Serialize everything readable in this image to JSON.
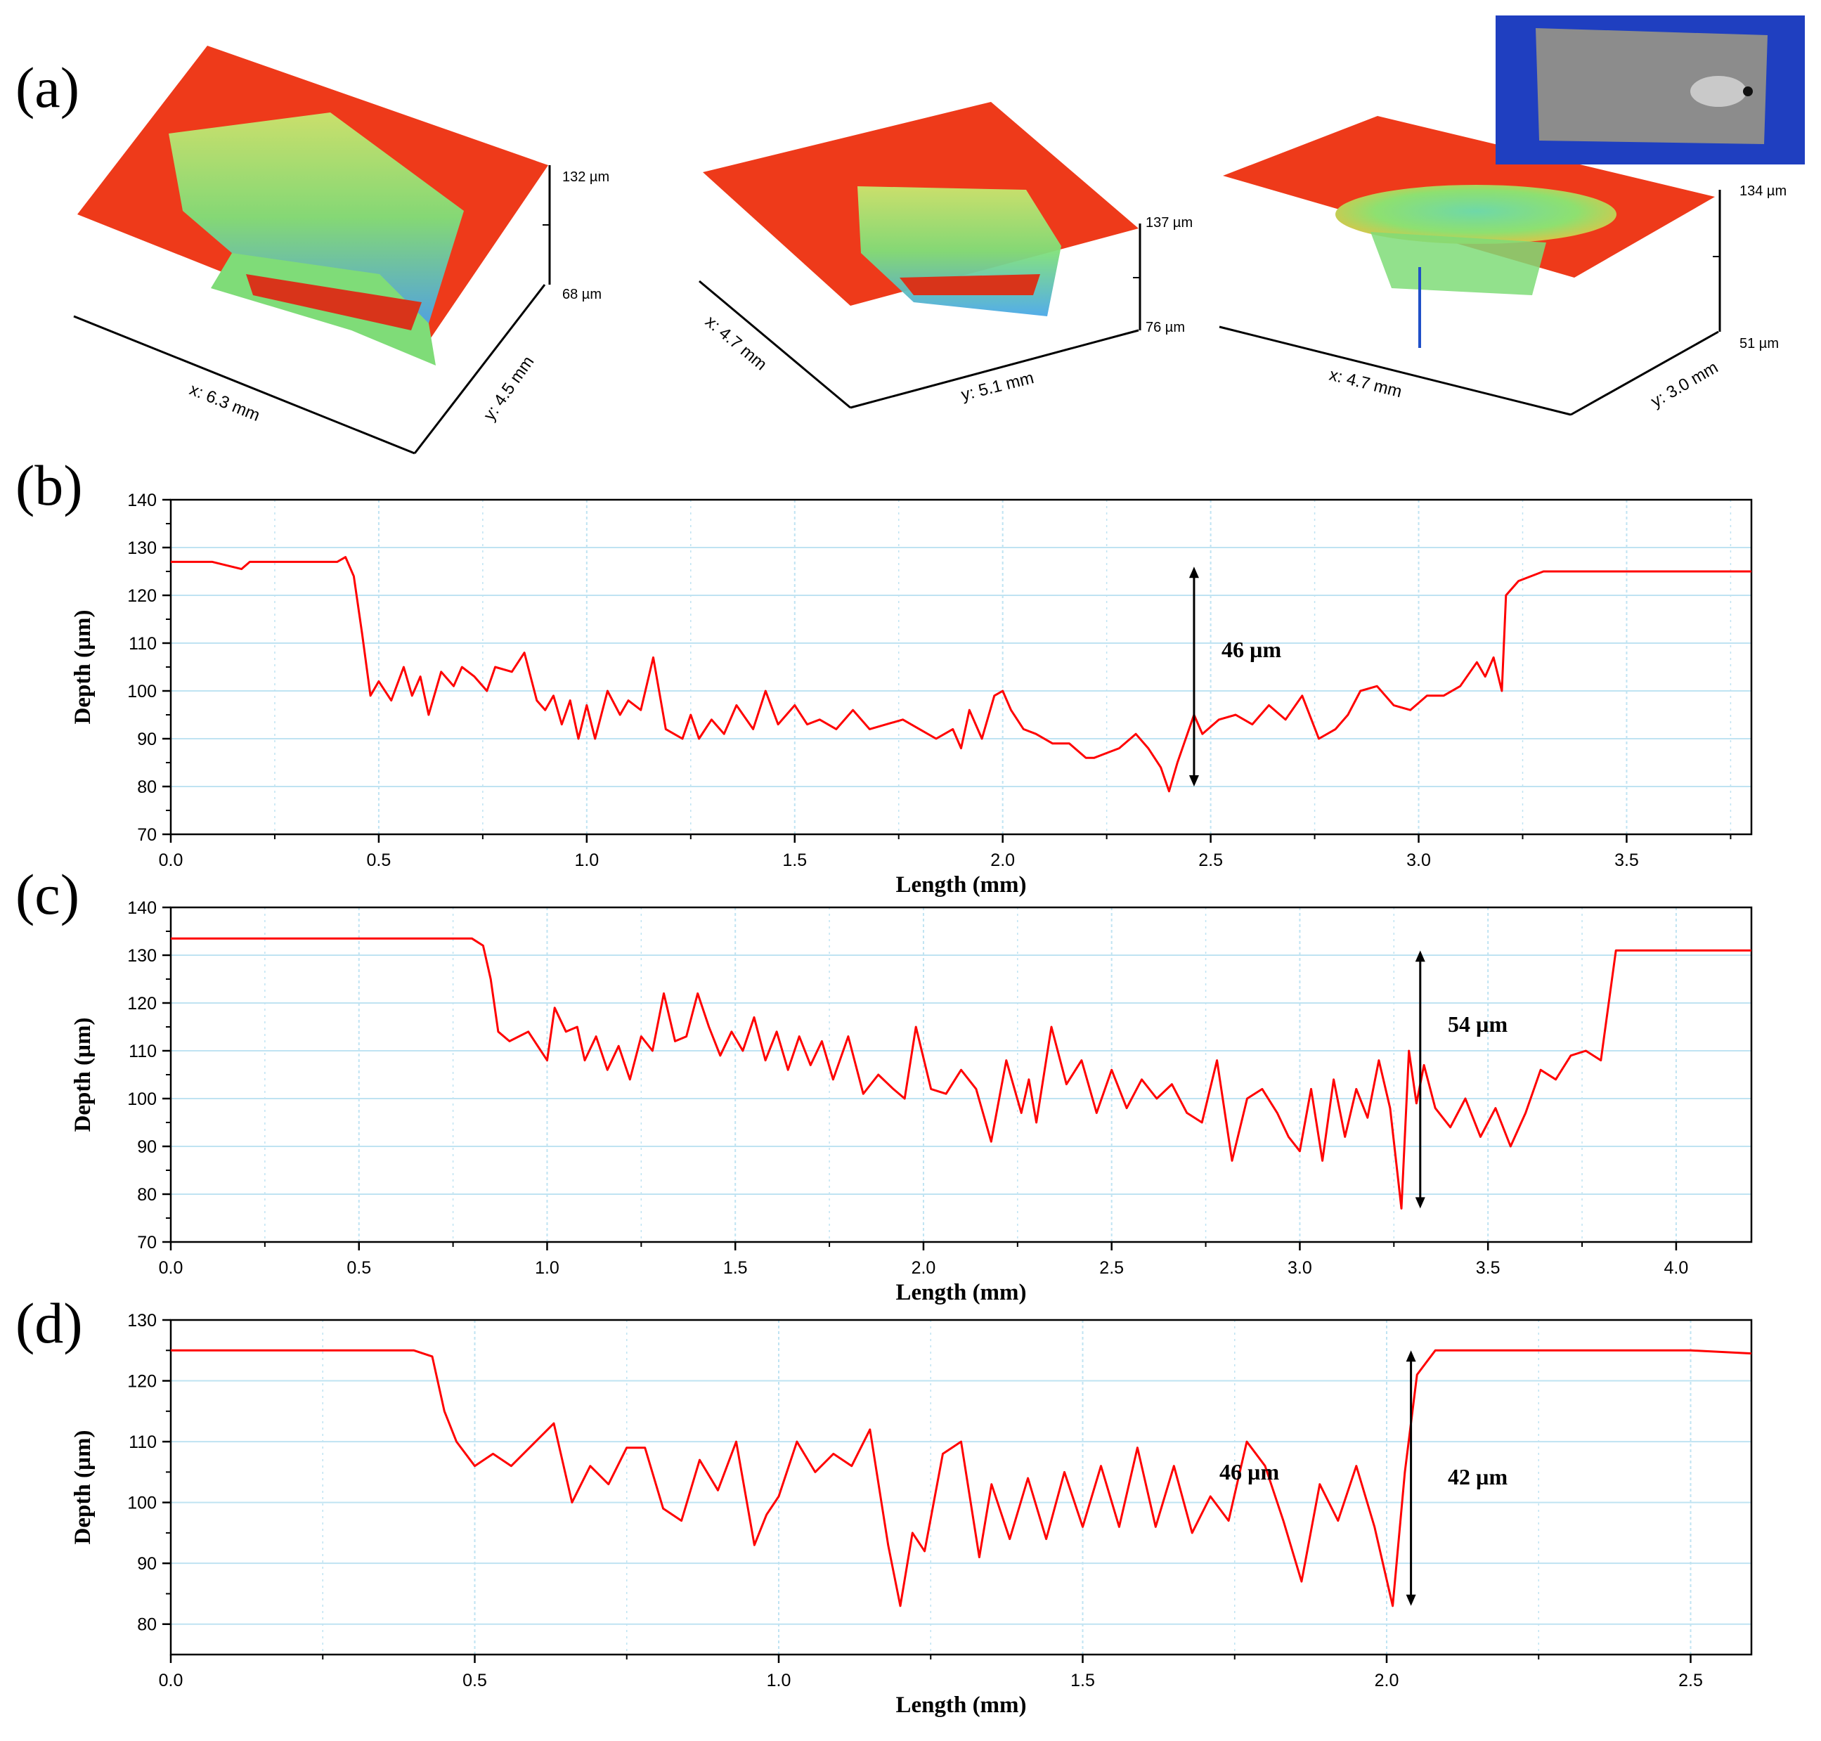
{
  "panel_labels": {
    "a": "(a)",
    "b": "(b)",
    "c": "(c)",
    "d": "(d)"
  },
  "surfaces": [
    {
      "x_label": "x: 6.3 mm",
      "y_label": "y: 4.5 mm",
      "z_max": "132 µm",
      "z_min": "68 µm"
    },
    {
      "x_label": "x: 4.7 mm",
      "y_label": "y: 5.1 mm",
      "z_max": "137 µm",
      "z_min": "76 µm"
    },
    {
      "x_label": "x: 4.7 mm",
      "y_label": "y: 3.0 mm",
      "z_max": "134 µm",
      "z_min": "51 µm"
    }
  ],
  "colors": {
    "trace": "#ff0000",
    "grid": "#bfe3f2",
    "surface_top": "#ee3a1a",
    "pit": "#7fe07a",
    "pit_deep": "#4aa8e8"
  },
  "chart_data": [
    {
      "type": "line",
      "panel": "(b)",
      "xlabel": "Length (mm)",
      "ylabel": "Depth (µm)",
      "xlim": [
        0,
        3.8
      ],
      "ylim": [
        70,
        140
      ],
      "xticks": [
        "0.0",
        "0.5",
        "1.0",
        "1.5",
        "2.0",
        "2.5",
        "3.0",
        "3.5"
      ],
      "yticks": [
        "70",
        "80",
        "90",
        "100",
        "110",
        "120",
        "130",
        "140"
      ],
      "annotations": [
        {
          "text": "46 µm",
          "arrow_x": 2.46,
          "arrow_from": 80,
          "arrow_to": 126
        }
      ],
      "x": [
        0.0,
        0.1,
        0.17,
        0.19,
        0.3,
        0.4,
        0.42,
        0.44,
        0.46,
        0.48,
        0.5,
        0.53,
        0.56,
        0.58,
        0.6,
        0.62,
        0.65,
        0.68,
        0.7,
        0.73,
        0.76,
        0.78,
        0.82,
        0.85,
        0.88,
        0.9,
        0.92,
        0.94,
        0.96,
        0.98,
        1.0,
        1.02,
        1.05,
        1.08,
        1.1,
        1.13,
        1.16,
        1.19,
        1.21,
        1.23,
        1.25,
        1.27,
        1.3,
        1.33,
        1.36,
        1.4,
        1.43,
        1.46,
        1.5,
        1.53,
        1.56,
        1.6,
        1.64,
        1.68,
        1.72,
        1.76,
        1.8,
        1.84,
        1.88,
        1.9,
        1.92,
        1.95,
        1.98,
        2.0,
        2.02,
        2.05,
        2.08,
        2.12,
        2.16,
        2.2,
        2.22,
        2.25,
        2.28,
        2.32,
        2.35,
        2.38,
        2.4,
        2.42,
        2.44,
        2.46,
        2.48,
        2.52,
        2.56,
        2.6,
        2.64,
        2.68,
        2.72,
        2.76,
        2.8,
        2.83,
        2.86,
        2.9,
        2.94,
        2.98,
        3.02,
        3.06,
        3.1,
        3.14,
        3.16,
        3.18,
        3.2,
        3.21,
        3.24,
        3.3,
        3.4,
        3.5,
        3.6,
        3.7,
        3.8
      ],
      "y": [
        127,
        127,
        125.5,
        127,
        127,
        127,
        128,
        124,
        112,
        99,
        102,
        98,
        105,
        99,
        103,
        95,
        104,
        101,
        105,
        103,
        100,
        105,
        104,
        108,
        98,
        96,
        99,
        93,
        98,
        90,
        97,
        90,
        100,
        95,
        98,
        96,
        107,
        92,
        91,
        90,
        95,
        90,
        94,
        91,
        97,
        92,
        100,
        93,
        97,
        93,
        94,
        92,
        96,
        92,
        93,
        94,
        92,
        90,
        92,
        88,
        96,
        90,
        99,
        100,
        96,
        92,
        91,
        89,
        89,
        86,
        86,
        87,
        88,
        91,
        88,
        84,
        79,
        85,
        90,
        95,
        91,
        94,
        95,
        93,
        97,
        94,
        99,
        90,
        92,
        95,
        100,
        101,
        97,
        96,
        99,
        99,
        101,
        106,
        103,
        107,
        100,
        120,
        123,
        125,
        125,
        125,
        125,
        125,
        125
      ],
      "title": "",
      "grid": true
    },
    {
      "type": "line",
      "panel": "(c)",
      "xlabel": "Length (mm)",
      "ylabel": "Depth (µm)",
      "xlim": [
        0,
        4.2
      ],
      "ylim": [
        70,
        140
      ],
      "xticks": [
        "0.0",
        "0.5",
        "1.0",
        "1.5",
        "2.0",
        "2.5",
        "3.0",
        "3.5",
        "4.0"
      ],
      "yticks": [
        "70",
        "80",
        "90",
        "100",
        "110",
        "120",
        "130",
        "140"
      ],
      "annotations": [
        {
          "text": "54 µm",
          "arrow_x": 3.32,
          "arrow_from": 77,
          "arrow_to": 131
        }
      ],
      "x": [
        0.0,
        0.2,
        0.4,
        0.6,
        0.8,
        0.83,
        0.85,
        0.87,
        0.9,
        0.95,
        1.0,
        1.02,
        1.05,
        1.08,
        1.1,
        1.13,
        1.16,
        1.19,
        1.22,
        1.25,
        1.28,
        1.31,
        1.34,
        1.37,
        1.4,
        1.43,
        1.46,
        1.49,
        1.52,
        1.55,
        1.58,
        1.61,
        1.64,
        1.67,
        1.7,
        1.73,
        1.76,
        1.8,
        1.84,
        1.88,
        1.92,
        1.95,
        1.98,
        2.02,
        2.06,
        2.1,
        2.14,
        2.18,
        2.22,
        2.26,
        2.28,
        2.3,
        2.34,
        2.38,
        2.42,
        2.46,
        2.5,
        2.54,
        2.58,
        2.62,
        2.66,
        2.7,
        2.74,
        2.78,
        2.82,
        2.86,
        2.9,
        2.94,
        2.97,
        3.0,
        3.03,
        3.06,
        3.09,
        3.12,
        3.15,
        3.18,
        3.21,
        3.24,
        3.27,
        3.29,
        3.31,
        3.33,
        3.36,
        3.4,
        3.44,
        3.48,
        3.52,
        3.56,
        3.6,
        3.64,
        3.68,
        3.72,
        3.76,
        3.8,
        3.84,
        3.86,
        3.88,
        3.9,
        4.0,
        4.1,
        4.2
      ],
      "y": [
        133.5,
        133.5,
        133.5,
        133.5,
        133.5,
        132,
        125,
        114,
        112,
        114,
        108,
        119,
        114,
        115,
        108,
        113,
        106,
        111,
        104,
        113,
        110,
        122,
        112,
        113,
        122,
        115,
        109,
        114,
        110,
        117,
        108,
        114,
        106,
        113,
        107,
        112,
        104,
        113,
        101,
        105,
        102,
        100,
        115,
        102,
        101,
        106,
        102,
        91,
        108,
        97,
        104,
        95,
        115,
        103,
        108,
        97,
        106,
        98,
        104,
        100,
        103,
        97,
        95,
        108,
        87,
        100,
        102,
        97,
        92,
        89,
        102,
        87,
        104,
        92,
        102,
        96,
        108,
        98,
        77,
        110,
        99,
        107,
        98,
        94,
        100,
        92,
        98,
        90,
        97,
        106,
        104,
        109,
        110,
        108,
        131,
        131,
        131,
        131,
        131,
        131,
        131
      ],
      "title": "",
      "grid": true
    },
    {
      "type": "line",
      "panel": "(d)",
      "xlabel": "Length (mm)",
      "ylabel": "Depth (µm)",
      "xlim": [
        0,
        2.6
      ],
      "ylim": [
        75,
        130
      ],
      "xticks": [
        "0.0",
        "0.5",
        "1.0",
        "1.5",
        "2.0",
        "2.5"
      ],
      "yticks": [
        "80",
        "90",
        "100",
        "110",
        "120",
        "130"
      ],
      "annotations": [
        {
          "text": "46 µm",
          "arrow_x": null
        },
        {
          "text": "42 µm",
          "arrow_x": 2.04,
          "arrow_from": 83,
          "arrow_to": 125
        }
      ],
      "x": [
        0.0,
        0.1,
        0.2,
        0.3,
        0.4,
        0.43,
        0.45,
        0.47,
        0.5,
        0.53,
        0.56,
        0.6,
        0.63,
        0.66,
        0.69,
        0.72,
        0.75,
        0.78,
        0.81,
        0.84,
        0.87,
        0.9,
        0.93,
        0.96,
        0.98,
        1.0,
        1.03,
        1.06,
        1.09,
        1.12,
        1.15,
        1.18,
        1.2,
        1.22,
        1.24,
        1.27,
        1.3,
        1.33,
        1.35,
        1.38,
        1.41,
        1.44,
        1.47,
        1.5,
        1.53,
        1.56,
        1.59,
        1.62,
        1.65,
        1.68,
        1.71,
        1.74,
        1.77,
        1.8,
        1.83,
        1.86,
        1.89,
        1.92,
        1.95,
        1.98,
        2.01,
        2.03,
        2.05,
        2.08,
        2.2,
        2.3,
        2.4,
        2.5,
        2.6
      ],
      "y": [
        125,
        125,
        125,
        125,
        125,
        124,
        115,
        110,
        106,
        108,
        106,
        110,
        113,
        100,
        106,
        103,
        109,
        109,
        99,
        97,
        107,
        102,
        110,
        93,
        98,
        101,
        110,
        105,
        108,
        106,
        112,
        93,
        83,
        95,
        92,
        108,
        110,
        91,
        103,
        94,
        104,
        94,
        105,
        96,
        106,
        96,
        109,
        96,
        106,
        95,
        101,
        97,
        110,
        106,
        97,
        87,
        103,
        97,
        106,
        96,
        83,
        105,
        121,
        125,
        125,
        125,
        125,
        125,
        124.5
      ],
      "title": "",
      "grid": true
    }
  ]
}
